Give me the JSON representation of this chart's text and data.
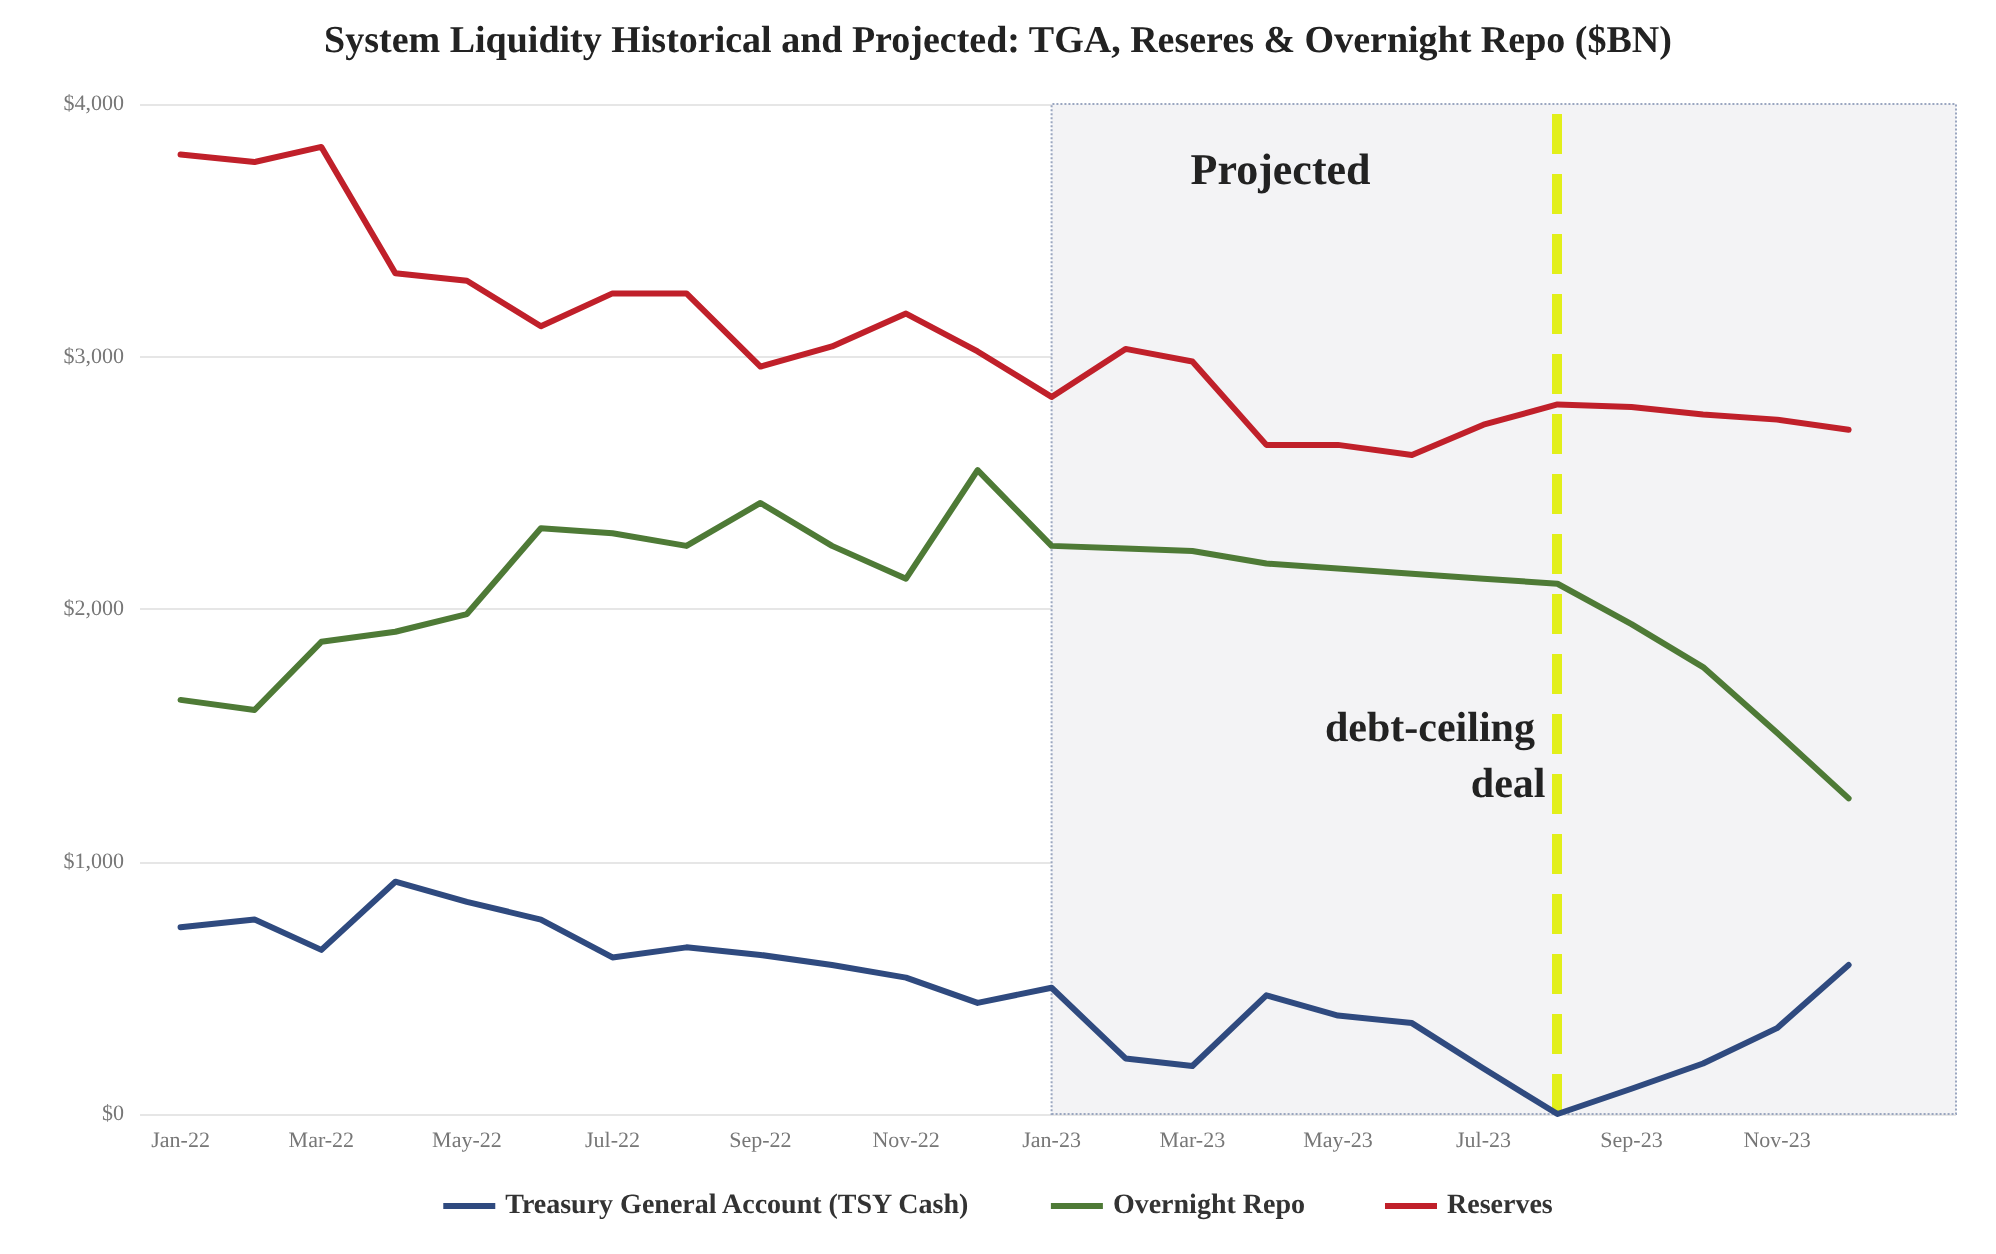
{
  "chart_data": {
    "type": "line",
    "title": "System Liquidity Historical and Projected: TGA, Reseres & Overnight Repo ($BN)",
    "x": [
      "2022-01",
      "2022-02",
      "2022-03",
      "2022-04",
      "2022-05",
      "2022-06",
      "2022-07",
      "2022-08",
      "2022-09",
      "2022-10",
      "2022-11",
      "2022-12",
      "2023-01",
      "2023-02",
      "2023-03",
      "2023-04",
      "2023-05",
      "2023-06",
      "2023-07",
      "2023-08",
      "2023-09",
      "2023-10",
      "2023-11",
      "2023-12"
    ],
    "series": [
      {
        "name": "Treasury General Account (TSY Cash)",
        "color": "#2f4a7f",
        "values": [
          740,
          770,
          650,
          920,
          840,
          770,
          620,
          660,
          630,
          590,
          540,
          440,
          500,
          220,
          190,
          470,
          390,
          360,
          180,
          0,
          100,
          200,
          340,
          590
        ]
      },
      {
        "name": "Overnight Repo",
        "color": "#4e7a36",
        "values": [
          1640,
          1600,
          1870,
          1910,
          1980,
          2320,
          2300,
          2250,
          2420,
          2250,
          2120,
          2550,
          2250,
          2240,
          2230,
          2180,
          2160,
          2140,
          2120,
          2100,
          1940,
          1770,
          1510,
          1250
        ]
      },
      {
        "name": "Reserves",
        "color": "#c0202a",
        "values": [
          3800,
          3770,
          3830,
          3330,
          3300,
          3120,
          3250,
          3250,
          2960,
          3040,
          3170,
          3020,
          2840,
          3030,
          2980,
          2650,
          2650,
          2610,
          2730,
          2810,
          2800,
          2770,
          2750,
          2710
        ]
      }
    ],
    "xlim": [
      "2021-12-15",
      "2024-01-15"
    ],
    "xticks": [
      {
        "value": "2022-01",
        "label": "Jan-22"
      },
      {
        "value": "2022-03",
        "label": "Mar-22"
      },
      {
        "value": "2022-05",
        "label": "May-22"
      },
      {
        "value": "2022-07",
        "label": "Jul-22"
      },
      {
        "value": "2022-09",
        "label": "Sep-22"
      },
      {
        "value": "2022-11",
        "label": "Nov-22"
      },
      {
        "value": "2023-01",
        "label": "Jan-23"
      },
      {
        "value": "2023-03",
        "label": "Mar-23"
      },
      {
        "value": "2023-05",
        "label": "May-23"
      },
      {
        "value": "2023-07",
        "label": "Jul-23"
      },
      {
        "value": "2023-09",
        "label": "Sep-23"
      },
      {
        "value": "2023-11",
        "label": "Nov-23"
      }
    ],
    "ylim": [
      0,
      4000
    ],
    "yticks": [
      {
        "value": 0,
        "label": "$0"
      },
      {
        "value": 1000,
        "label": "$1,000"
      },
      {
        "value": 2000,
        "label": "$2,000"
      },
      {
        "value": 3000,
        "label": "$3,000"
      },
      {
        "value": 4000,
        "label": "$4,000"
      }
    ],
    "bands": [
      {
        "axis": "x",
        "from": "2023-01",
        "to": "2024-01-15",
        "label": "Projected",
        "color": "#f3f3f5"
      }
    ],
    "ref_lines": [
      {
        "axis": "x",
        "value": "2023-08",
        "label": "debt-ceiling deal",
        "color": "#e2ef1a",
        "line_style": "dashed"
      }
    ],
    "grid": "y",
    "legend": "bottom",
    "marker": "none",
    "line_style": "solid"
  }
}
